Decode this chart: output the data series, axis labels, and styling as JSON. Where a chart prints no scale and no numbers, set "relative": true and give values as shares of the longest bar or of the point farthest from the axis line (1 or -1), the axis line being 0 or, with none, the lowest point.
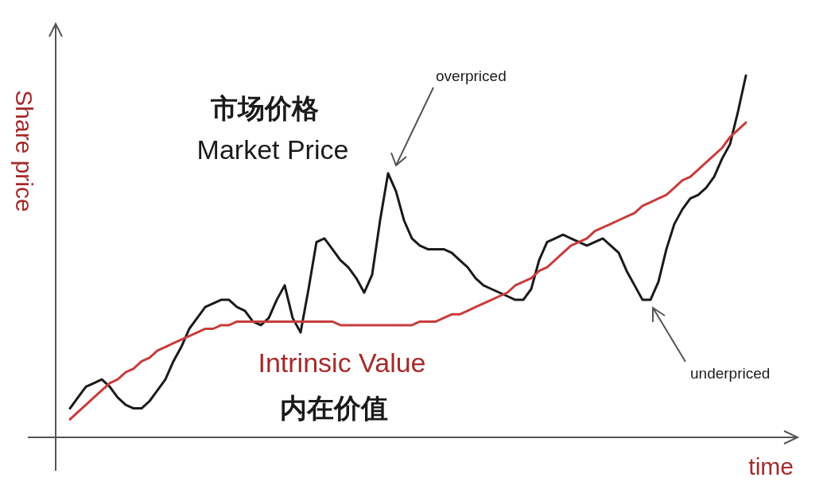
{
  "chart_data": {
    "type": "line",
    "relative": true,
    "xlabel": "time",
    "ylabel": "Share price",
    "categories": [
      null,
      null,
      null,
      null,
      null,
      null,
      null,
      null,
      null,
      null,
      null,
      null,
      null,
      null,
      null,
      null,
      null,
      null,
      null,
      null,
      null,
      null,
      null,
      null,
      null,
      null,
      null,
      null,
      null,
      null,
      null,
      null,
      null,
      null,
      null,
      null,
      null,
      null,
      null,
      null,
      null,
      null,
      null,
      null,
      null,
      null,
      null,
      null,
      null,
      null,
      null,
      null,
      null,
      null,
      null,
      null,
      null,
      null,
      null,
      null,
      null,
      null,
      null,
      null,
      null,
      null,
      null,
      null,
      null,
      null,
      null,
      null,
      null,
      null,
      null,
      null,
      null,
      null,
      null,
      null,
      null,
      null,
      null,
      null,
      null,
      null
    ],
    "series": [
      {
        "name": "Market Price",
        "color": "#1a1a1a",
        "values": [
          0.08,
          0.11,
          0.14,
          0.15,
          0.16,
          0.14,
          0.11,
          0.09,
          0.08,
          0.08,
          0.1,
          0.13,
          0.16,
          0.21,
          0.25,
          0.3,
          0.33,
          0.36,
          0.37,
          0.38,
          0.38,
          0.36,
          0.35,
          0.32,
          0.31,
          0.33,
          0.38,
          0.42,
          0.33,
          0.29,
          0.41,
          0.54,
          0.55,
          0.52,
          0.49,
          0.47,
          0.44,
          0.4,
          0.45,
          0.6,
          0.73,
          0.68,
          0.6,
          0.55,
          0.53,
          0.52,
          0.52,
          0.52,
          0.51,
          0.49,
          0.47,
          0.44,
          0.42,
          0.41,
          0.4,
          0.39,
          0.38,
          0.38,
          0.41,
          0.49,
          0.54,
          0.55,
          0.56,
          0.55,
          0.54,
          0.53,
          0.54,
          0.55,
          0.53,
          0.51,
          0.46,
          0.42,
          0.38,
          0.38,
          0.43,
          0.52,
          0.59,
          0.63,
          0.66,
          0.67,
          0.69,
          0.72,
          0.77,
          0.81,
          0.9,
          1.0
        ]
      },
      {
        "name": "Intrinsic Value",
        "color": "#c83c3c",
        "values": [
          0.05,
          0.07,
          0.09,
          0.11,
          0.13,
          0.15,
          0.16,
          0.18,
          0.19,
          0.21,
          0.22,
          0.24,
          0.25,
          0.26,
          0.27,
          0.28,
          0.29,
          0.3,
          0.3,
          0.31,
          0.31,
          0.32,
          0.32,
          0.32,
          0.32,
          0.32,
          0.32,
          0.32,
          0.32,
          0.32,
          0.32,
          0.32,
          0.32,
          0.32,
          0.31,
          0.31,
          0.31,
          0.31,
          0.31,
          0.31,
          0.31,
          0.31,
          0.31,
          0.31,
          0.32,
          0.32,
          0.32,
          0.33,
          0.34,
          0.34,
          0.35,
          0.36,
          0.37,
          0.38,
          0.39,
          0.4,
          0.42,
          0.43,
          0.44,
          0.46,
          0.47,
          0.49,
          0.51,
          0.53,
          0.54,
          0.55,
          0.57,
          0.58,
          0.59,
          0.6,
          0.61,
          0.62,
          0.64,
          0.65,
          0.66,
          0.67,
          0.69,
          0.71,
          0.72,
          0.74,
          0.76,
          0.78,
          0.8,
          0.83,
          0.85,
          0.87
        ]
      }
    ],
    "annotations": [
      "市场价格",
      "内在价值",
      "overpriced",
      "underpriced"
    ]
  }
}
